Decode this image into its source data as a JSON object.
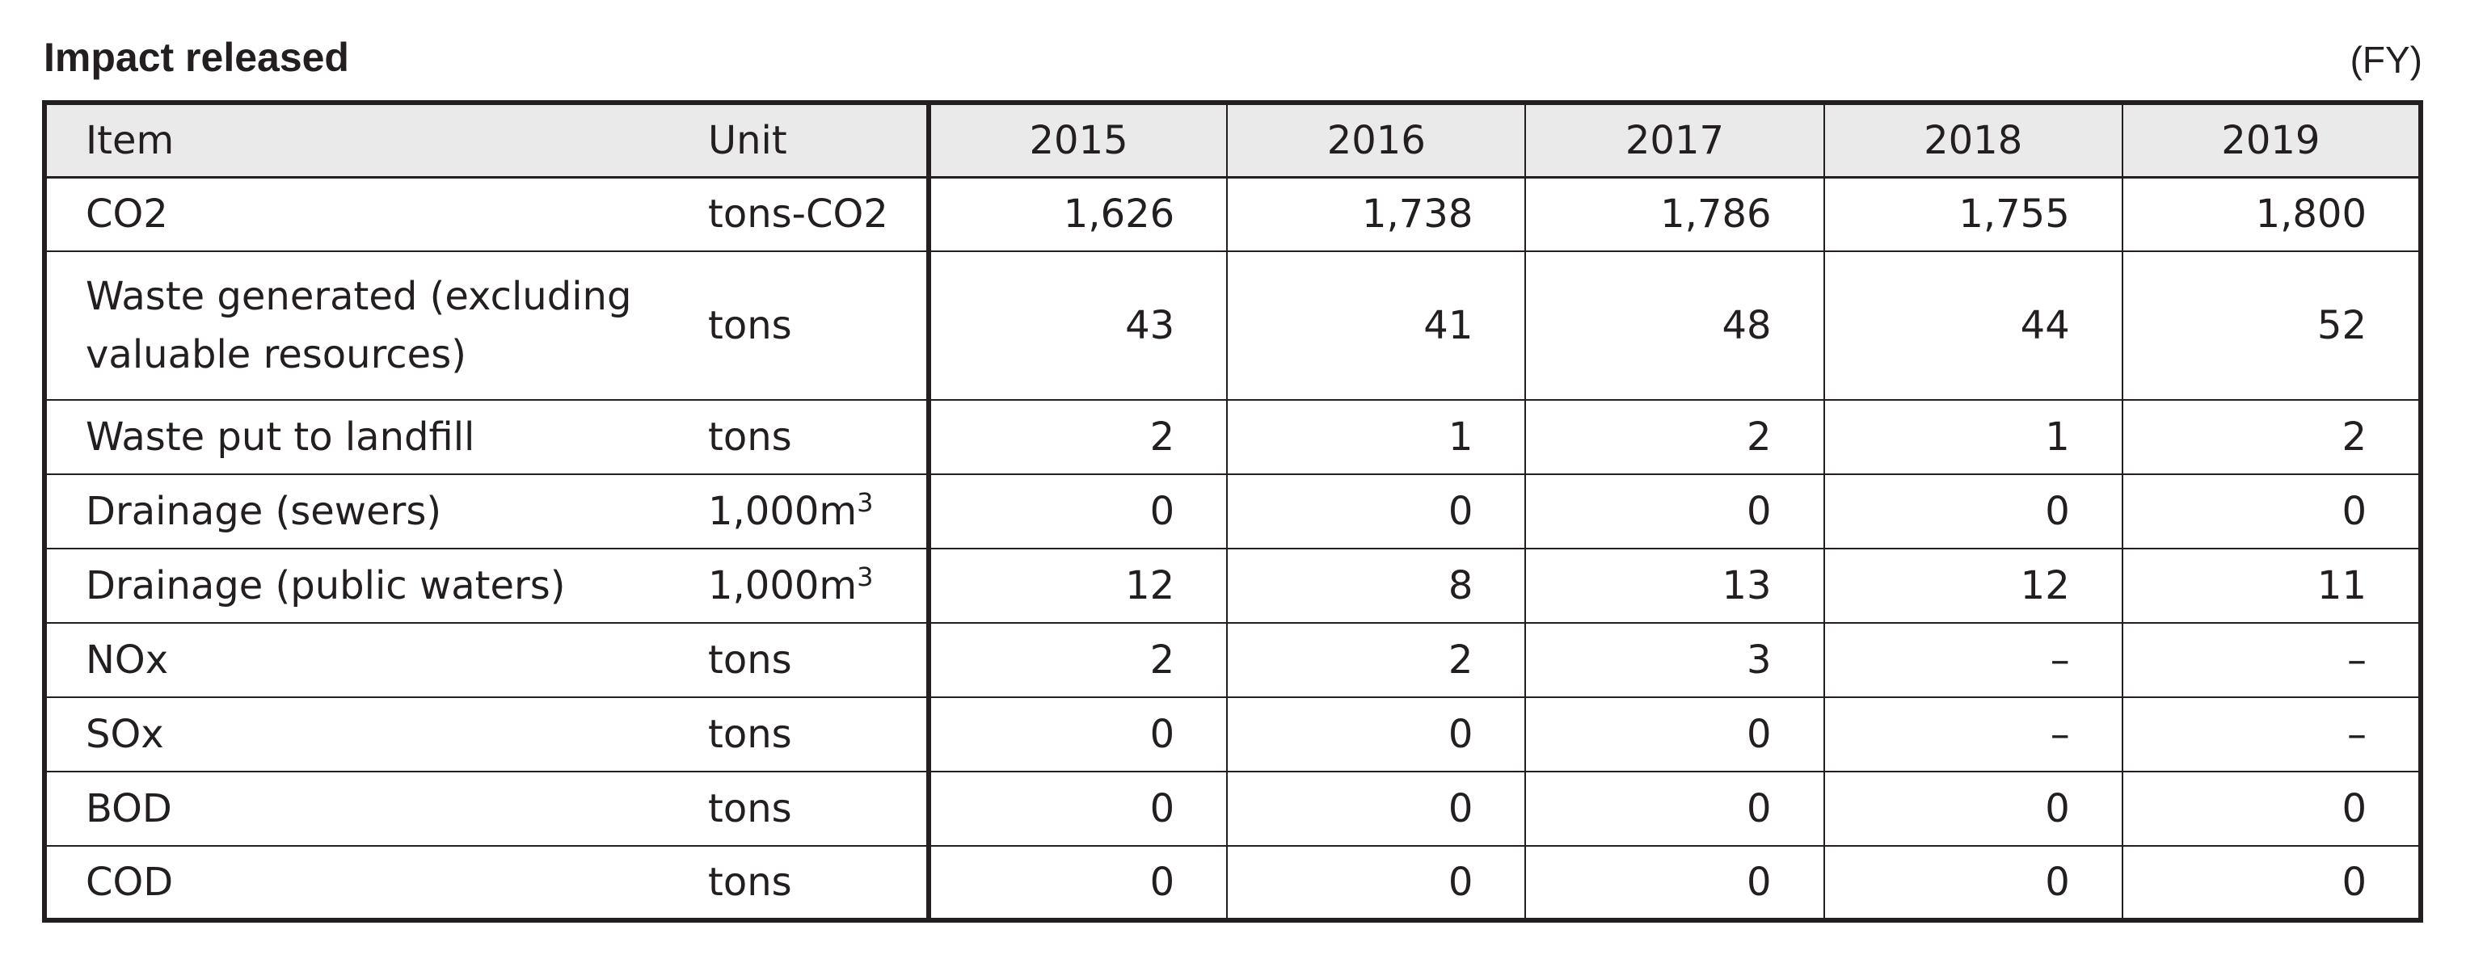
{
  "title": "Impact released",
  "fiscal_note": "(FY)",
  "table": {
    "headers": [
      "Item",
      "Unit",
      "2015",
      "2016",
      "2017",
      "2018",
      "2019"
    ],
    "rows": [
      {
        "item": "CO2",
        "unit": "tons-CO2",
        "unit_sup": "",
        "values": [
          "1,626",
          "1,738",
          "1,786",
          "1,755",
          "1,800"
        ]
      },
      {
        "item": "Waste generated (excluding valuable resources)",
        "unit": "tons",
        "unit_sup": "",
        "values": [
          "43",
          "41",
          "48",
          "44",
          "52"
        ]
      },
      {
        "item": "Waste put to landfill",
        "unit": "tons",
        "unit_sup": "",
        "values": [
          "2",
          "1",
          "2",
          "1",
          "2"
        ]
      },
      {
        "item": "Drainage (sewers)",
        "unit": "1,000m",
        "unit_sup": "3",
        "values": [
          "0",
          "0",
          "0",
          "0",
          "0"
        ]
      },
      {
        "item": "Drainage (public waters)",
        "unit": "1,000m",
        "unit_sup": "3",
        "values": [
          "12",
          "8",
          "13",
          "12",
          "11"
        ]
      },
      {
        "item": "NOx",
        "unit": "tons",
        "unit_sup": "",
        "values": [
          "2",
          "2",
          "3",
          "–",
          "–"
        ]
      },
      {
        "item": "SOx",
        "unit": "tons",
        "unit_sup": "",
        "values": [
          "0",
          "0",
          "0",
          "–",
          "–"
        ]
      },
      {
        "item": "BOD",
        "unit": "tons",
        "unit_sup": "",
        "values": [
          "0",
          "0",
          "0",
          "0",
          "0"
        ]
      },
      {
        "item": "COD",
        "unit": "tons",
        "unit_sup": "",
        "values": [
          "0",
          "0",
          "0",
          "0",
          "0"
        ]
      }
    ]
  }
}
